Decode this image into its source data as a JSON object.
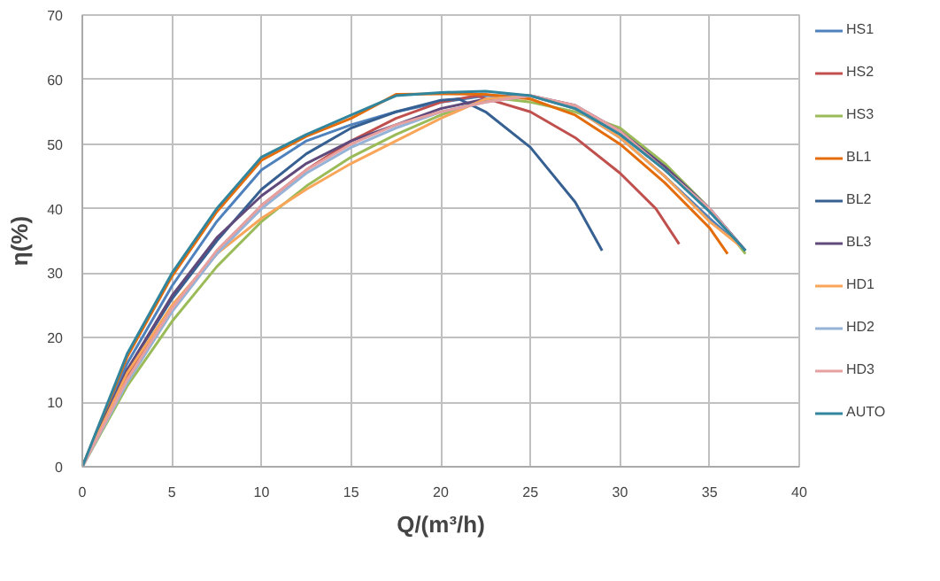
{
  "chart_data": {
    "type": "line",
    "xlabel": "Q/(m³/h)",
    "ylabel": "η(%)",
    "xlim": [
      0,
      40
    ],
    "ylim": [
      0,
      70
    ],
    "xticks": [
      0,
      5,
      10,
      15,
      20,
      25,
      30,
      35,
      40
    ],
    "yticks": [
      0,
      10,
      20,
      30,
      40,
      50,
      60,
      70
    ],
    "grid": true,
    "legend": "right",
    "marker": "none",
    "line_style": "solid",
    "series": [
      {
        "name": "HS1",
        "color": "#4f81bd",
        "x": [
          0,
          2.5,
          5,
          7.5,
          10,
          12.5,
          15,
          17.5,
          20,
          22.5,
          25,
          27.5,
          30,
          32.5,
          35,
          37
        ],
        "values": [
          0,
          16,
          28,
          38,
          46,
          50.5,
          53,
          55,
          56.5,
          57.5,
          57.5,
          55.5,
          51,
          45,
          38.5,
          33.5
        ]
      },
      {
        "name": "HS2",
        "color": "#c0504d",
        "x": [
          0,
          2.5,
          5,
          7.5,
          10,
          12.5,
          15,
          17.5,
          20,
          22,
          25,
          27.5,
          30,
          32,
          33.3
        ],
        "values": [
          0,
          14,
          24.5,
          33,
          40.5,
          46,
          50.5,
          54,
          56.5,
          57.5,
          55,
          51,
          45.5,
          40,
          34.5
        ]
      },
      {
        "name": "HS3",
        "color": "#9bbb59",
        "x": [
          0,
          2.5,
          5,
          7.5,
          10,
          12.5,
          15,
          17.5,
          20,
          22,
          23.5,
          25,
          27.5,
          30,
          32.5,
          35,
          37
        ],
        "values": [
          0,
          12.5,
          22.5,
          31,
          38,
          43.5,
          48,
          51.5,
          54.5,
          56.5,
          57,
          56.5,
          55,
          52.5,
          47,
          40,
          33
        ]
      },
      {
        "name": "BL1",
        "color": "#e46c0a",
        "x": [
          0,
          2.5,
          5,
          7.5,
          10,
          12.5,
          15,
          17.5,
          20,
          22.5,
          25,
          27.5,
          30,
          32.5,
          35,
          36
        ],
        "values": [
          0,
          17,
          29.5,
          39.5,
          47.5,
          51.2,
          54,
          57.7,
          57.8,
          57.7,
          57,
          54.5,
          50,
          44,
          37,
          33
        ]
      },
      {
        "name": "BL2",
        "color": "#376092",
        "x": [
          0,
          2.5,
          5,
          7.5,
          10,
          12.5,
          15,
          17.5,
          20,
          21,
          22.5,
          25,
          27.5,
          29
        ],
        "values": [
          0,
          15,
          26,
          35,
          43,
          48.5,
          52.5,
          55,
          56.8,
          57,
          55,
          49.5,
          41,
          33.5
        ]
      },
      {
        "name": "BL3",
        "color": "#604a7b",
        "x": [
          0,
          2.5,
          5,
          7.5,
          10,
          12.5,
          15,
          17.5,
          20,
          22.5,
          25,
          27.5,
          30,
          32.5,
          35,
          37
        ],
        "values": [
          0,
          15,
          26.5,
          35.5,
          42,
          47,
          50.5,
          53,
          55.5,
          57,
          57.5,
          56,
          52,
          46.5,
          40,
          33.5
        ]
      },
      {
        "name": "HD1",
        "color": "#f9a55a",
        "x": [
          0,
          2.5,
          5,
          7.5,
          10,
          12.5,
          15,
          17.5,
          20,
          22.5,
          25,
          27.5,
          30,
          32.5,
          35,
          36.8
        ],
        "values": [
          0,
          14.5,
          25,
          33,
          38.5,
          43,
          47,
          50.5,
          54,
          57,
          57.5,
          55.5,
          51,
          45,
          38,
          34
        ]
      },
      {
        "name": "HD2",
        "color": "#95b3d7",
        "x": [
          0,
          2.5,
          5,
          7.5,
          10,
          12.5,
          15,
          17.5,
          20,
          22.5,
          25,
          27.5,
          30,
          32.5,
          35,
          36.5
        ],
        "values": [
          0,
          13,
          24,
          33,
          40,
          45.5,
          49.5,
          52.5,
          55,
          56.5,
          57.5,
          55.5,
          51.5,
          46,
          40,
          35
        ]
      },
      {
        "name": "HD3",
        "color": "#e6a0a0",
        "x": [
          0,
          2.5,
          5,
          7.5,
          10,
          12.5,
          15,
          17.5,
          20,
          22.5,
          25,
          27.5,
          30,
          32.5,
          35,
          36.8
        ],
        "values": [
          0,
          13.5,
          24.5,
          33.5,
          40.5,
          46,
          50,
          53,
          55,
          56.5,
          57.5,
          56,
          52,
          46,
          40,
          34
        ]
      },
      {
        "name": "AUTO",
        "color": "#31859c",
        "x": [
          0,
          2.5,
          5,
          7.5,
          10,
          12.5,
          15,
          17.5,
          20,
          22.5,
          25,
          27.5,
          30,
          32.5,
          35,
          37
        ],
        "values": [
          0,
          17.5,
          30,
          40,
          48,
          51.5,
          54.5,
          57.5,
          58,
          58.2,
          57.5,
          55.5,
          51.5,
          46,
          39.5,
          33.5
        ]
      }
    ]
  }
}
